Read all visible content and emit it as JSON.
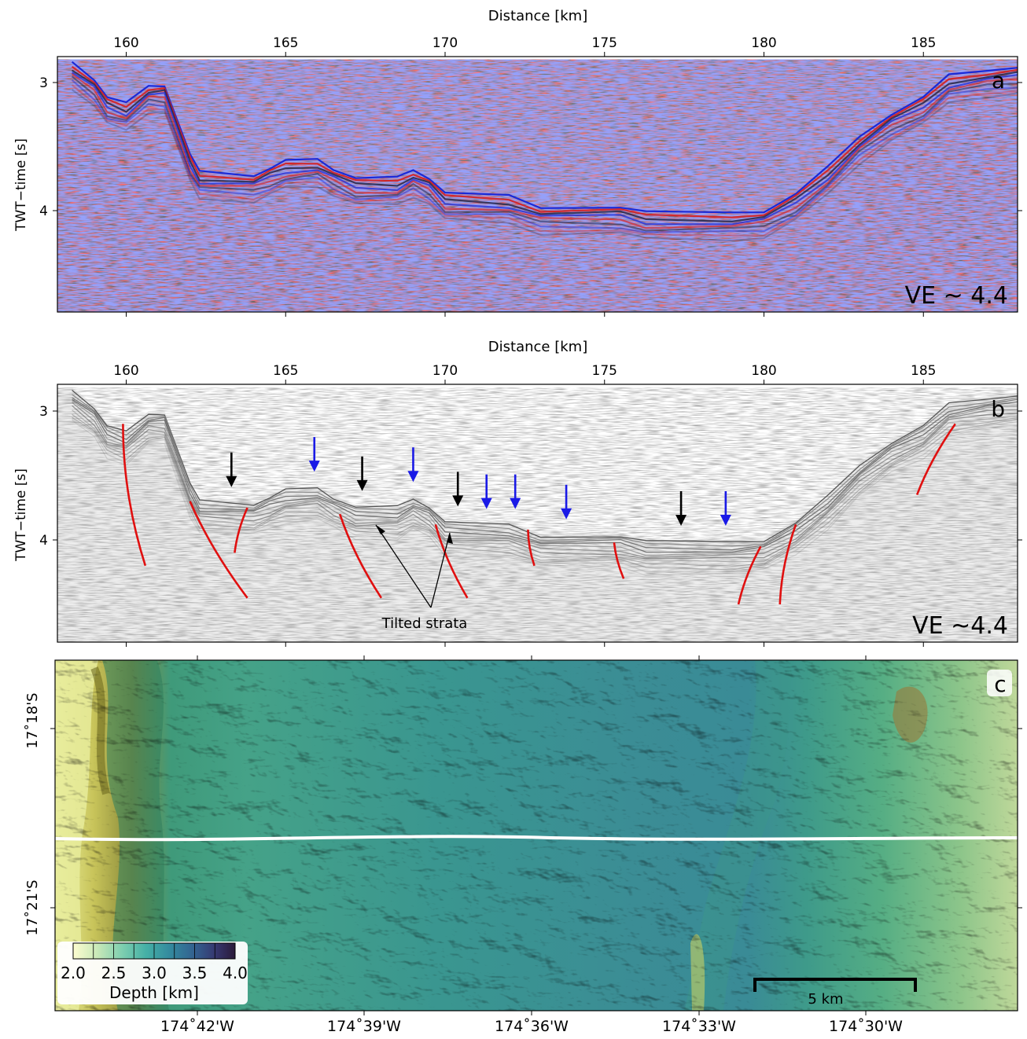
{
  "colors": {
    "blue_arrow": "#1a1ae6",
    "black_arrow": "#000000",
    "fault": "#e01010",
    "track": "#ffffff",
    "seis_pos": "#d42020",
    "seis_neg": "#1a2ad8"
  },
  "panel_a": {
    "label": "a",
    "top_axis_title": "Distance [km]",
    "y_axis_title": "TWT−time [s]",
    "x_ticks": [
      "160",
      "165",
      "170",
      "175",
      "180",
      "185"
    ],
    "y_ticks": [
      "3",
      "4"
    ],
    "ve_text": "VE ~ 4.4"
  },
  "panel_b": {
    "label": "b",
    "top_axis_title": "Distance [km]",
    "y_axis_title": "TWT−time [s]",
    "x_ticks": [
      "160",
      "165",
      "170",
      "175",
      "180",
      "185"
    ],
    "y_ticks": [
      "3",
      "4"
    ],
    "ve_text": "VE ~4.4",
    "annotation": "Tilted strata",
    "blue_arrow_x_km": [
      165.9,
      169.0,
      171.3,
      172.2,
      173.8,
      178.8
    ],
    "black_arrow_x_km": [
      163.3,
      167.4,
      170.4,
      177.4
    ]
  },
  "panel_c": {
    "label": "c",
    "x_ticks": [
      "174˚42'W",
      "174˚39'W",
      "174˚36'W",
      "174˚33'W",
      "174˚30'W"
    ],
    "y_ticks": [
      "17˚18'S",
      "17˚21'S"
    ],
    "colorbar": {
      "title": "Depth [km]",
      "ticks": [
        "2.0",
        "2.5",
        "3.0",
        "3.5",
        "4.0"
      ],
      "range": [
        2.0,
        4.0
      ]
    },
    "scalebar": "5 km"
  },
  "chart_data": [
    {
      "type": "seismic-section",
      "panel": "a",
      "xlabel": "Distance [km]",
      "ylabel": "TWT−time [s]",
      "xlim": [
        158,
        188.2
      ],
      "ylim": [
        2.8,
        4.6
      ],
      "seafloor_twt_s": [
        [
          158.3,
          2.82
        ],
        [
          159.0,
          2.95
        ],
        [
          159.4,
          3.1
        ],
        [
          160.0,
          3.15
        ],
        [
          160.7,
          3.0
        ],
        [
          161.2,
          3.0
        ],
        [
          162.0,
          3.55
        ],
        [
          162.3,
          3.68
        ],
        [
          164.0,
          3.7
        ],
        [
          164.5,
          3.65
        ],
        [
          165.0,
          3.6
        ],
        [
          166.0,
          3.58
        ],
        [
          166.5,
          3.65
        ],
        [
          167.2,
          3.73
        ],
        [
          168.5,
          3.73
        ],
        [
          169.0,
          3.66
        ],
        [
          169.5,
          3.72
        ],
        [
          170.0,
          3.85
        ],
        [
          172.0,
          3.87
        ],
        [
          173.0,
          3.95
        ],
        [
          175.5,
          3.95
        ],
        [
          176.3,
          4.0
        ],
        [
          179.0,
          4.0
        ],
        [
          180.0,
          3.98
        ],
        [
          181.0,
          3.85
        ],
        [
          182.0,
          3.65
        ],
        [
          183.0,
          3.4
        ],
        [
          184.0,
          3.22
        ],
        [
          185.0,
          3.1
        ],
        [
          185.8,
          2.93
        ],
        [
          187.0,
          2.88
        ],
        [
          188.2,
          2.85
        ]
      ]
    },
    {
      "type": "seismic-section",
      "panel": "b",
      "xlabel": "Distance [km]",
      "ylabel": "TWT−time [s]",
      "xlim": [
        158,
        188.2
      ],
      "ylim": [
        2.8,
        4.6
      ],
      "fault_lines_km_twt": [
        [
          [
            159.9,
            3.1
          ],
          [
            160.6,
            4.2
          ]
        ],
        [
          [
            162.0,
            3.7
          ],
          [
            163.8,
            4.45
          ]
        ],
        [
          [
            163.8,
            3.75
          ],
          [
            163.4,
            4.1
          ]
        ],
        [
          [
            166.7,
            3.8
          ],
          [
            168.0,
            4.45
          ]
        ],
        [
          [
            169.7,
            3.88
          ],
          [
            170.7,
            4.45
          ]
        ],
        [
          [
            172.6,
            3.92
          ],
          [
            172.8,
            4.2
          ]
        ],
        [
          [
            175.3,
            4.02
          ],
          [
            175.6,
            4.3
          ]
        ],
        [
          [
            179.9,
            4.05
          ],
          [
            179.2,
            4.5
          ]
        ],
        [
          [
            181.0,
            3.88
          ],
          [
            180.5,
            4.5
          ]
        ],
        [
          [
            186.0,
            3.1
          ],
          [
            184.8,
            3.65
          ]
        ]
      ]
    }
  ]
}
